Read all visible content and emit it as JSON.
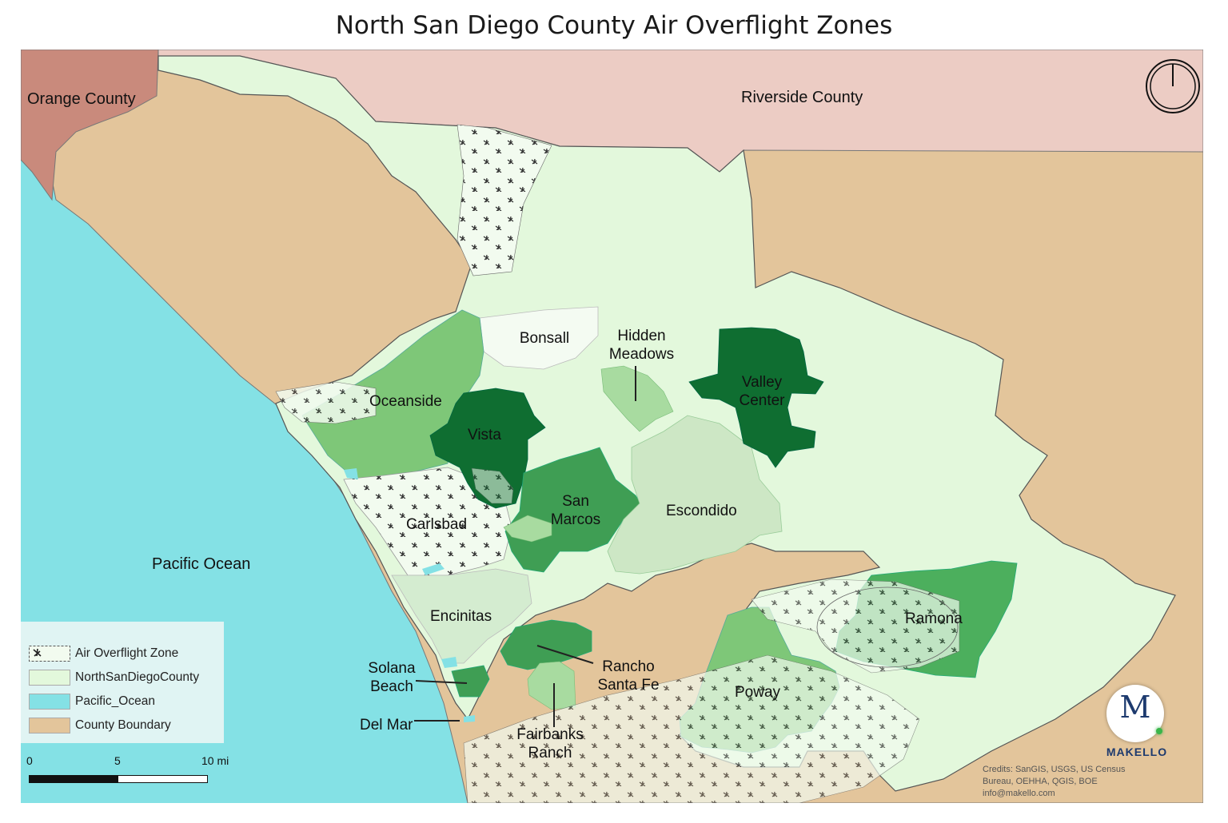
{
  "title": "North San Diego County Air Overflight Zones",
  "regions": {
    "orange_county": "Orange County",
    "riverside_county": "Riverside County",
    "pacific_ocean": "Pacific Ocean"
  },
  "places": {
    "bonsall": "Bonsall",
    "hidden_meadows": "Hidden\nMeadows",
    "valley_center": "Valley\nCenter",
    "oceanside": "Oceanside",
    "vista": "Vista",
    "san_marcos": "San\nMarcos",
    "escondido": "Escondido",
    "carlsbad": "Carlsbad",
    "encinitas": "Encinitas",
    "ramona": "Ramona",
    "rancho_santa_fe": "Rancho\nSanta Fe",
    "solana_beach": "Solana\nBeach",
    "poway": "Poway",
    "del_mar": "Del Mar",
    "fairbanks_ranch": "Fairbanks\nRanch"
  },
  "legend": {
    "items": [
      {
        "label": "Air Overflight Zone",
        "symbol": "airplane-hatch"
      },
      {
        "label": "NorthSanDiegoCounty",
        "color": "#e3f8dc"
      },
      {
        "label": "Pacific_Ocean",
        "color": "#84e1e5"
      },
      {
        "label": "County Boundary",
        "color": "#e3c59b"
      }
    ]
  },
  "scale": {
    "labels": [
      "0",
      "5",
      "10 mi"
    ]
  },
  "credits": [
    "Credits: SanGIS, USGS, US Census",
    "Bureau,  OEHHA, QGIS, BOE",
    "info@makello.com"
  ],
  "logo": {
    "mark": "M",
    "name": "MAKELLO"
  },
  "north_arrow": "north-arrow-icon",
  "colors": {
    "ocean": "#84e1e5",
    "county_boundary": "#e3c59b",
    "north_county": "#e3f8dc",
    "orange_county": "#c98a7c",
    "riverside_county": "#ecccc4",
    "green_light": "#a8dba0",
    "green_mid": "#7ec778",
    "green_strong": "#3f9e54",
    "green_dark": "#0f6e31"
  }
}
